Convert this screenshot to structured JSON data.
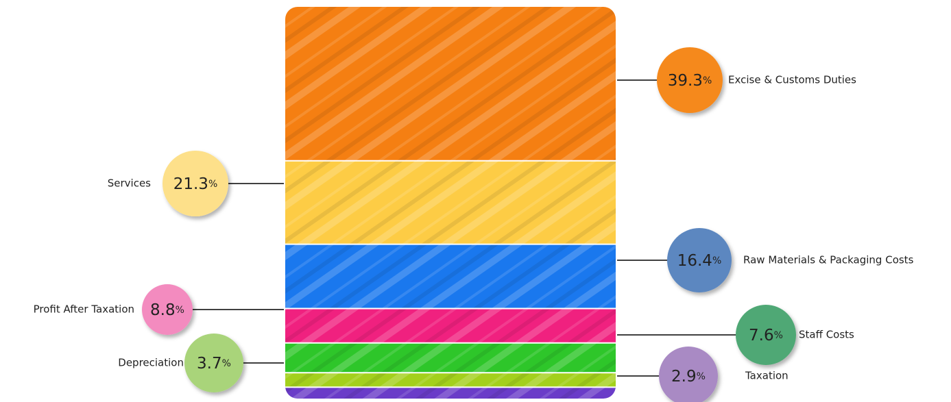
{
  "chart_data": {
    "type": "bar",
    "stacked": true,
    "unit": "%",
    "series": [
      {
        "name": "Excise & Customs Duties",
        "color": "#f57f12",
        "bubble_color": "#f5891f",
        "values": [
          39.3
        ]
      },
      {
        "name": "Services",
        "color": "#fdcc45",
        "bubble_color": "#fde08a",
        "values": [
          21.3
        ]
      },
      {
        "name": "Raw Materials & Packaging Costs",
        "color": "#1a78ee",
        "bubble_color": "#5b87c0",
        "values": [
          16.4
        ]
      },
      {
        "name": "Profit After Taxation",
        "color": "#f0217f",
        "bubble_color": "#f38bbf",
        "values": [
          8.8
        ]
      },
      {
        "name": "Staff Costs",
        "color": "#2ec62a",
        "bubble_color": "#4fa874",
        "values": [
          7.6
        ]
      },
      {
        "name": "Depreciation",
        "color": "#a3d01c",
        "bubble_color": "#a9d47a",
        "values": [
          3.7
        ]
      },
      {
        "name": "Taxation",
        "color": "#6a3cc8",
        "bubble_color": "#a98ac4",
        "values": [
          2.9
        ]
      }
    ]
  }
}
